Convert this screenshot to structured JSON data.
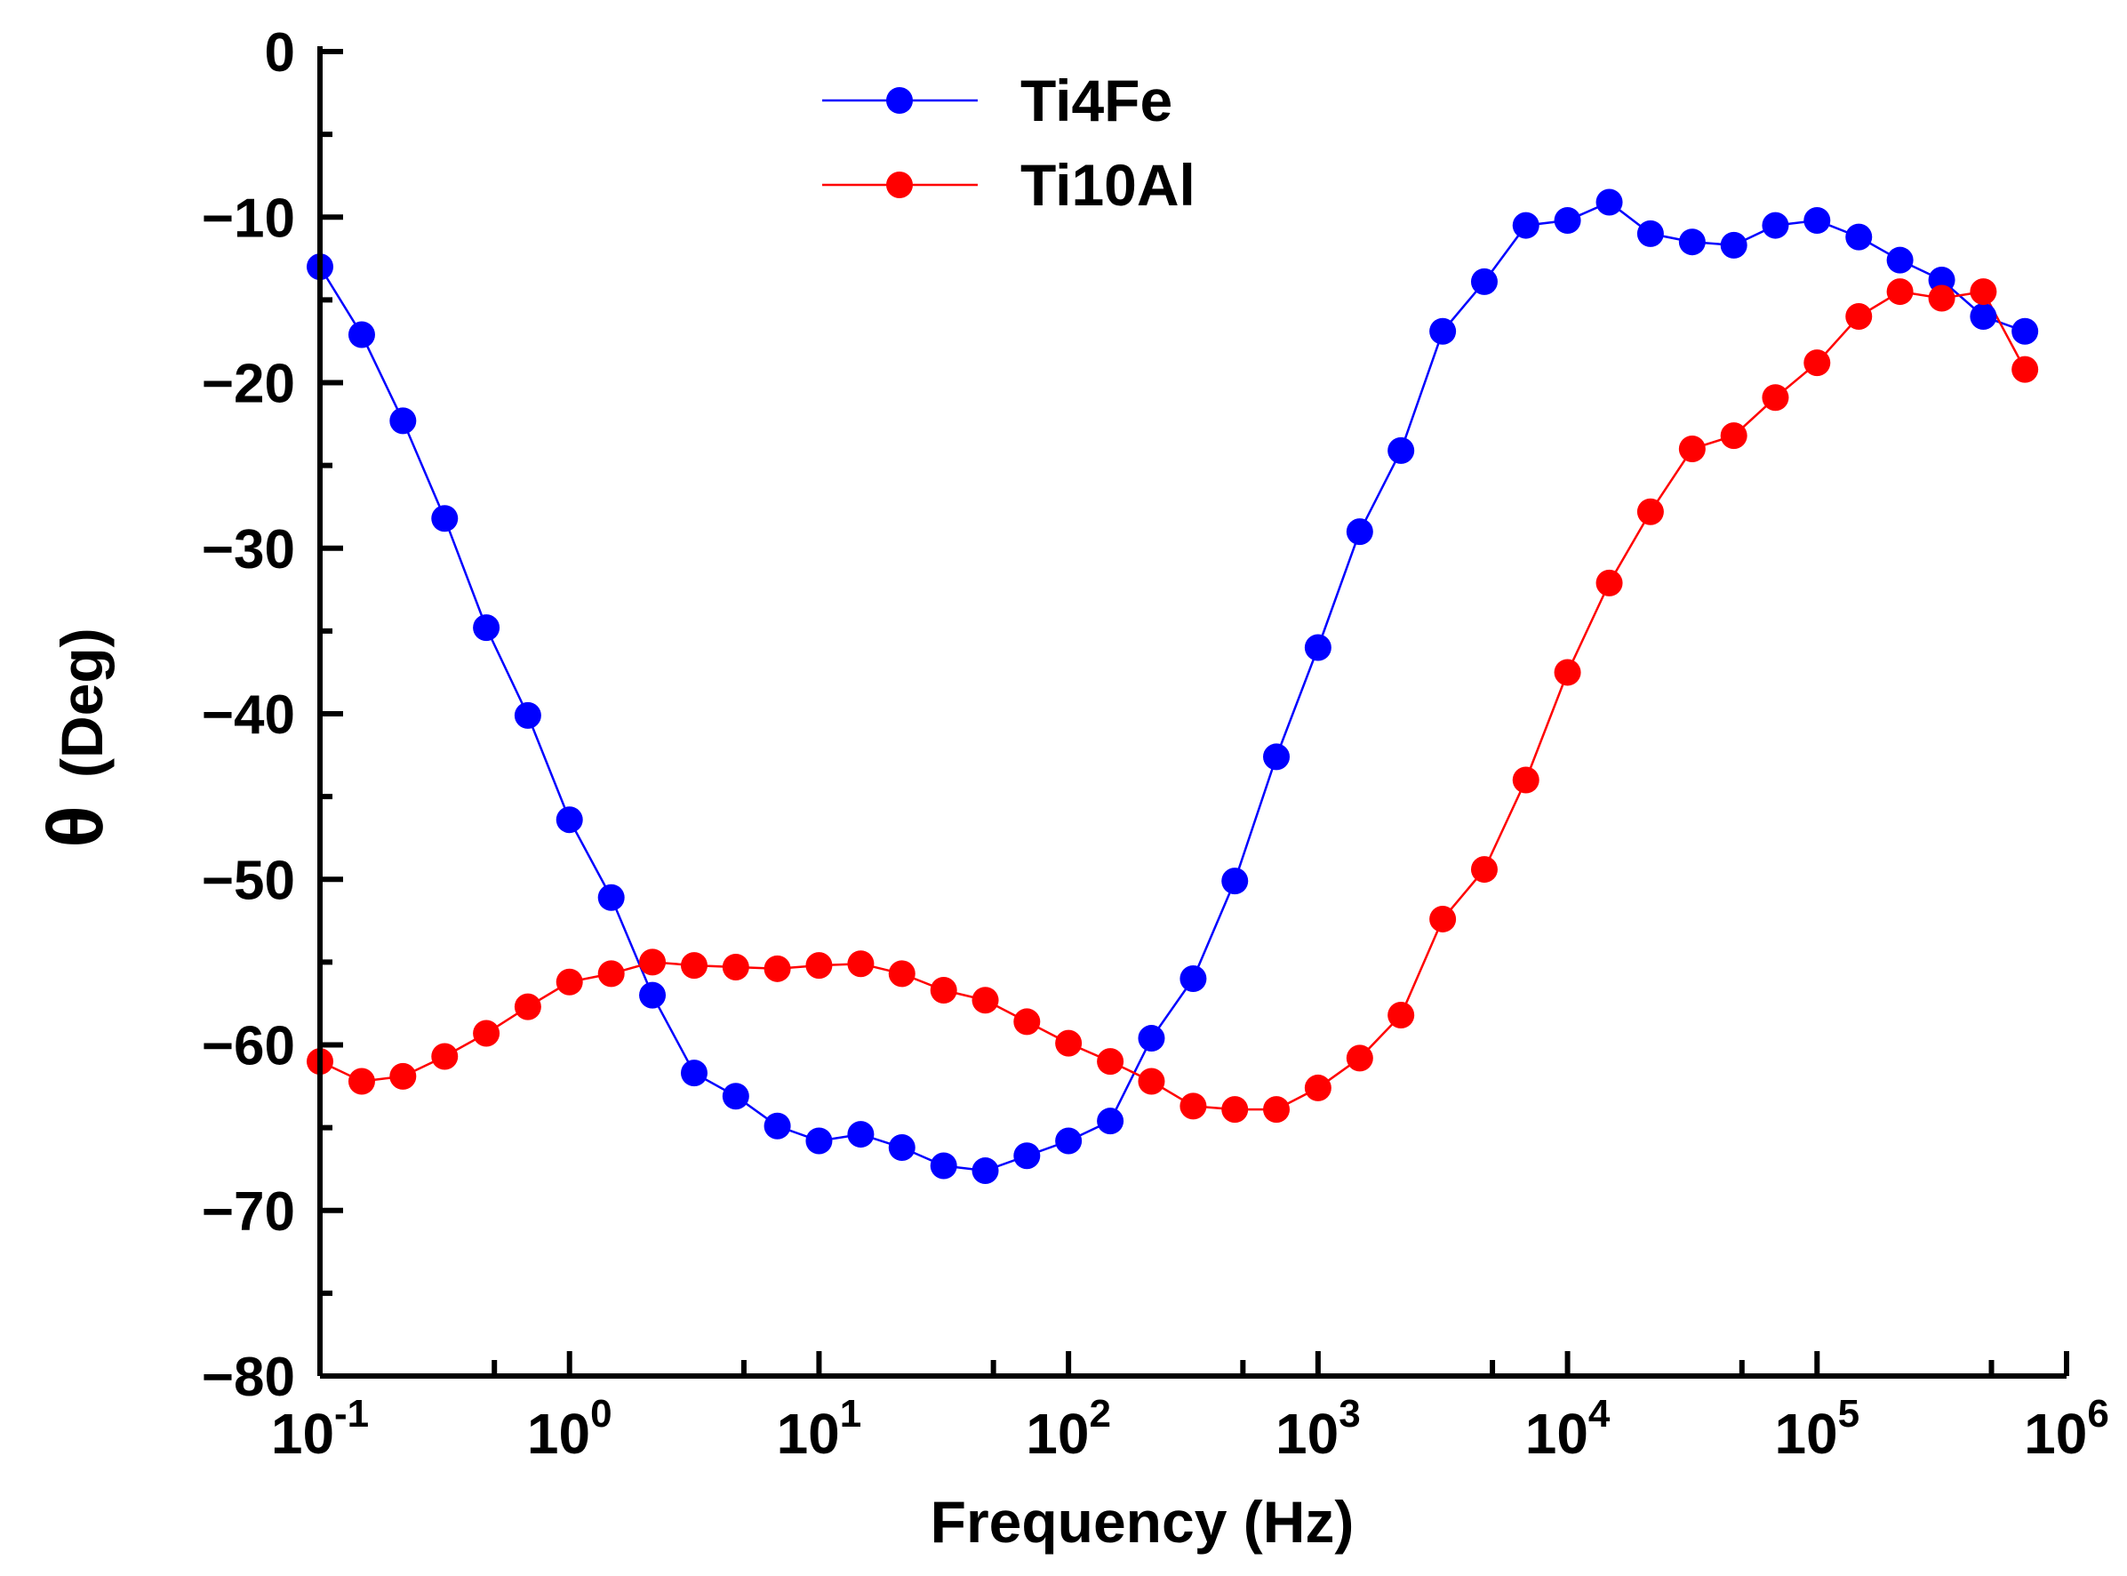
{
  "chart_data": {
    "type": "line",
    "title": "",
    "xlabel": "Frequency (Hz)",
    "ylabel_symbol": "θ",
    "ylabel_unit": "(Deg)",
    "x_scale": "log",
    "xlim": [
      0.1,
      1000000
    ],
    "ylim": [
      -80,
      0
    ],
    "grid": false,
    "legend_position": "top-center",
    "x_ticks": [
      {
        "base": "10",
        "exp": "-1",
        "value": 0.1
      },
      {
        "base": "10",
        "exp": "0",
        "value": 1
      },
      {
        "base": "10",
        "exp": "1",
        "value": 10
      },
      {
        "base": "10",
        "exp": "2",
        "value": 100
      },
      {
        "base": "10",
        "exp": "3",
        "value": 1000
      },
      {
        "base": "10",
        "exp": "4",
        "value": 10000
      },
      {
        "base": "10",
        "exp": "5",
        "value": 100000
      },
      {
        "base": "10",
        "exp": "6",
        "value": 1000000
      }
    ],
    "y_ticks": [
      {
        "label": "0",
        "value": 0
      },
      {
        "label": "−10",
        "value": -10
      },
      {
        "label": "−20",
        "value": -20
      },
      {
        "label": "−30",
        "value": -30
      },
      {
        "label": "−40",
        "value": -40
      },
      {
        "label": "−50",
        "value": -50
      },
      {
        "label": "−60",
        "value": -60
      },
      {
        "label": "−70",
        "value": -70
      },
      {
        "label": "−80",
        "value": -80
      }
    ],
    "series": [
      {
        "name": "Ti4Fe",
        "color": "#0000ff",
        "x": [
          0.1,
          0.147,
          0.215,
          0.316,
          0.464,
          0.681,
          1,
          1.47,
          2.15,
          3.16,
          4.64,
          6.81,
          10,
          14.7,
          21.5,
          31.6,
          46.4,
          68.1,
          100,
          147,
          215,
          316,
          464,
          681,
          1000,
          1470,
          2150,
          3160,
          4640,
          6810,
          10000,
          14700,
          21500,
          31600,
          46400,
          68100,
          100000,
          147000,
          215000,
          316000,
          464000,
          681000
        ],
        "y": [
          -13.0,
          -17.1,
          -22.3,
          -28.2,
          -34.8,
          -40.1,
          -46.4,
          -51.1,
          -57.0,
          -61.7,
          -63.1,
          -64.9,
          -65.8,
          -65.4,
          -66.2,
          -67.3,
          -67.6,
          -66.7,
          -65.8,
          -64.6,
          -59.6,
          -56.0,
          -50.1,
          -42.6,
          -36.0,
          -29.0,
          -24.1,
          -16.9,
          -13.9,
          -10.5,
          -10.2,
          -9.1,
          -11.0,
          -11.5,
          -11.7,
          -10.5,
          -10.2,
          -11.2,
          -12.6,
          -13.8,
          -16.0,
          -16.9
        ]
      },
      {
        "name": "Ti10Al",
        "color": "#ff0000",
        "x": [
          0.1,
          0.147,
          0.215,
          0.316,
          0.464,
          0.681,
          1,
          1.47,
          2.15,
          3.16,
          4.64,
          6.81,
          10,
          14.7,
          21.5,
          31.6,
          46.4,
          68.1,
          100,
          147,
          215,
          316,
          464,
          681,
          1000,
          1470,
          2150,
          3160,
          4640,
          6810,
          10000,
          14700,
          21500,
          31600,
          46400,
          68100,
          100000,
          147000,
          215000,
          316000,
          464000,
          681000
        ],
        "y": [
          -61.0,
          -62.2,
          -61.9,
          -60.7,
          -59.3,
          -57.7,
          -56.2,
          -55.7,
          -55.0,
          -55.2,
          -55.3,
          -55.4,
          -55.2,
          -55.1,
          -55.7,
          -56.7,
          -57.3,
          -58.6,
          -59.9,
          -61.0,
          -62.2,
          -63.7,
          -63.9,
          -63.9,
          -62.6,
          -60.8,
          -58.2,
          -52.4,
          -49.4,
          -44.0,
          -37.5,
          -32.1,
          -27.8,
          -24.0,
          -23.2,
          -20.9,
          -18.8,
          -16.0,
          -14.5,
          -14.9,
          -14.5,
          -19.2
        ]
      }
    ]
  }
}
